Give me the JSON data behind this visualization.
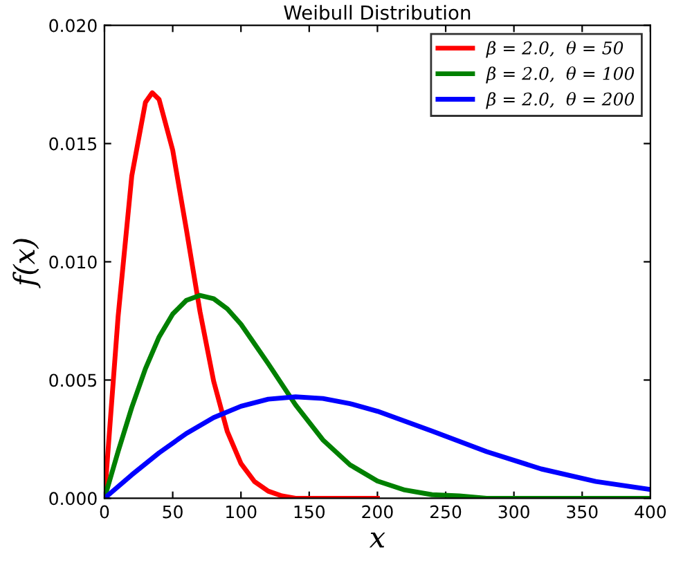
{
  "chart_data": {
    "type": "line",
    "title": "Weibull Distribution",
    "xlabel": "x",
    "ylabel": "f(x)",
    "xlim": [
      0,
      400
    ],
    "ylim": [
      0,
      0.02
    ],
    "xticks": [
      0,
      50,
      100,
      150,
      200,
      250,
      300,
      350,
      400
    ],
    "yticks": [
      {
        "value": 0,
        "label": "0.000"
      },
      {
        "value": 0.005,
        "label": "0.005"
      },
      {
        "value": 0.01,
        "label": "0.010"
      },
      {
        "value": 0.015,
        "label": "0.015"
      },
      {
        "value": 0.02,
        "label": "0.020"
      }
    ],
    "grid": false,
    "legend": "top right",
    "marker": "none",
    "line_style": "solid",
    "series": [
      {
        "name": "β = 2.0,  θ = 50",
        "color": "#ff0000",
        "x": [
          0,
          10,
          20,
          30,
          35,
          40,
          50,
          60,
          70,
          80,
          90,
          100,
          110,
          120,
          130,
          140,
          150,
          200
        ],
        "values": [
          0,
          0.00769,
          0.01363,
          0.01674,
          0.01715,
          0.01687,
          0.01472,
          0.01137,
          0.00789,
          0.00495,
          0.00282,
          0.00147,
          0.0007,
          0.0003,
          0.0001,
          0,
          0,
          0
        ]
      },
      {
        "name": "β = 2.0,  θ = 100",
        "color": "#008000",
        "x": [
          0,
          10,
          20,
          30,
          40,
          50,
          60,
          70,
          80,
          90,
          100,
          120,
          140,
          160,
          180,
          200,
          220,
          240,
          260,
          280,
          300,
          350,
          400
        ],
        "values": [
          0,
          0.00198,
          0.00384,
          0.00548,
          0.00682,
          0.00779,
          0.00837,
          0.00858,
          0.00844,
          0.00801,
          0.00736,
          0.00569,
          0.00395,
          0.00247,
          0.00141,
          0.00073,
          0.00035,
          0.00015,
          0.0001,
          0,
          0,
          0,
          0
        ]
      },
      {
        "name": "β = 2.0,  θ = 200",
        "color": "#0000ff",
        "x": [
          0,
          20,
          40,
          60,
          80,
          100,
          120,
          140,
          160,
          180,
          200,
          240,
          280,
          320,
          360,
          400
        ],
        "values": [
          0,
          0.00099,
          0.00192,
          0.00274,
          0.00341,
          0.00389,
          0.00419,
          0.00429,
          0.00422,
          0.004,
          0.00368,
          0.00284,
          0.00197,
          0.00124,
          0.00071,
          0.00037
        ]
      }
    ]
  }
}
